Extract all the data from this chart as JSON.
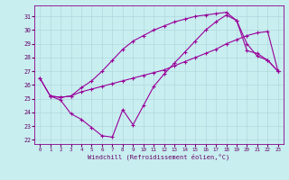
{
  "xlabel": "Windchill (Refroidissement éolien,°C)",
  "xlim": [
    -0.5,
    23.5
  ],
  "ylim": [
    21.7,
    31.8
  ],
  "xticks": [
    0,
    1,
    2,
    3,
    4,
    5,
    6,
    7,
    8,
    9,
    10,
    11,
    12,
    13,
    14,
    15,
    16,
    17,
    18,
    19,
    20,
    21,
    22,
    23
  ],
  "yticks": [
    22,
    23,
    24,
    25,
    26,
    27,
    28,
    29,
    30,
    31
  ],
  "background_color": "#c8eef0",
  "grid_color": "#b0d8dc",
  "line_color": "#990099",
  "line1_x": [
    0,
    1,
    2,
    3,
    4,
    5,
    6,
    7,
    8,
    9,
    10,
    11,
    12,
    13,
    14,
    15,
    16,
    17,
    18,
    19,
    20,
    21,
    22,
    23
  ],
  "line1_y": [
    26.5,
    25.2,
    25.1,
    25.2,
    25.5,
    25.7,
    25.9,
    26.1,
    26.3,
    26.5,
    26.7,
    26.9,
    27.1,
    27.4,
    27.7,
    28.0,
    28.3,
    28.6,
    29.0,
    29.3,
    29.6,
    29.8,
    29.9,
    27.0
  ],
  "line2_x": [
    0,
    1,
    2,
    3,
    4,
    5,
    6,
    7,
    8,
    9,
    10,
    11,
    12,
    13,
    14,
    15,
    16,
    17,
    18,
    19,
    20,
    21,
    22,
    23
  ],
  "line2_y": [
    26.5,
    25.2,
    25.1,
    25.2,
    25.8,
    26.3,
    27.0,
    27.8,
    28.6,
    29.2,
    29.6,
    30.0,
    30.3,
    30.6,
    30.8,
    31.0,
    31.1,
    31.2,
    31.3,
    30.7,
    28.5,
    28.3,
    27.8,
    27.0
  ],
  "line3_x": [
    1,
    2,
    3,
    4,
    5,
    6,
    7,
    8,
    9,
    10,
    11,
    12,
    13,
    14,
    15,
    16,
    17,
    18,
    19,
    20,
    21,
    22,
    23
  ],
  "line3_y": [
    25.2,
    24.9,
    23.9,
    23.5,
    22.9,
    22.3,
    22.2,
    24.2,
    23.1,
    24.5,
    25.9,
    26.8,
    27.6,
    28.4,
    29.2,
    30.0,
    30.6,
    31.1,
    30.7,
    29.0,
    28.1,
    27.8,
    27.0
  ]
}
